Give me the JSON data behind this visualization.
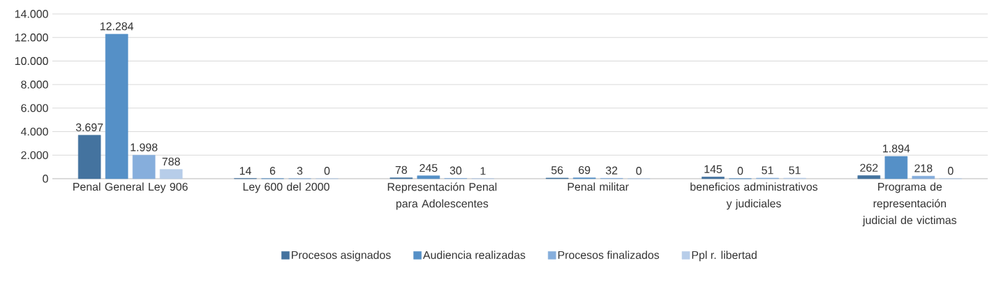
{
  "chart_data": {
    "type": "bar",
    "categories": [
      "Penal General Ley 906",
      "Ley 600 del 2000",
      "Representación Penal para Adolescentes",
      "Penal militar",
      "beneficios administrativos y judiciales",
      "Programa de representación judicial de victimas"
    ],
    "series": [
      {
        "name": "Procesos asignados",
        "color": "#44739f",
        "values": [
          3697,
          14,
          78,
          56,
          145,
          262
        ],
        "value_labels": [
          "3.697",
          "14",
          "78",
          "56",
          "145",
          "262"
        ]
      },
      {
        "name": "Audiencia realizadas",
        "color": "#5590c7",
        "values": [
          12284,
          6,
          245,
          69,
          0,
          1894
        ],
        "value_labels": [
          "12.284",
          "6",
          "245",
          "69",
          "0",
          "1.894"
        ]
      },
      {
        "name": "Procesos finalizados",
        "color": "#86aedc",
        "values": [
          1998,
          3,
          30,
          32,
          51,
          218
        ],
        "value_labels": [
          "1.998",
          "3",
          "30",
          "32",
          "51",
          "218"
        ]
      },
      {
        "name": "Ppl r.  libertad",
        "color": "#b7cde9",
        "values": [
          788,
          0,
          1,
          0,
          51,
          0
        ],
        "value_labels": [
          "788",
          "0",
          "1",
          "0",
          "51",
          "0"
        ]
      }
    ],
    "ylim": [
      0,
      14000
    ],
    "yticks": [
      {
        "value": 0,
        "label": "0"
      },
      {
        "value": 2000,
        "label": "2.000"
      },
      {
        "value": 4000,
        "label": "4.000"
      },
      {
        "value": 6000,
        "label": "6.000"
      },
      {
        "value": 8000,
        "label": "8.000"
      },
      {
        "value": 10000,
        "label": "10.000"
      },
      {
        "value": 12000,
        "label": "12.000"
      },
      {
        "value": 14000,
        "label": "14.000"
      }
    ],
    "grid": "y",
    "legend": "bottom"
  }
}
